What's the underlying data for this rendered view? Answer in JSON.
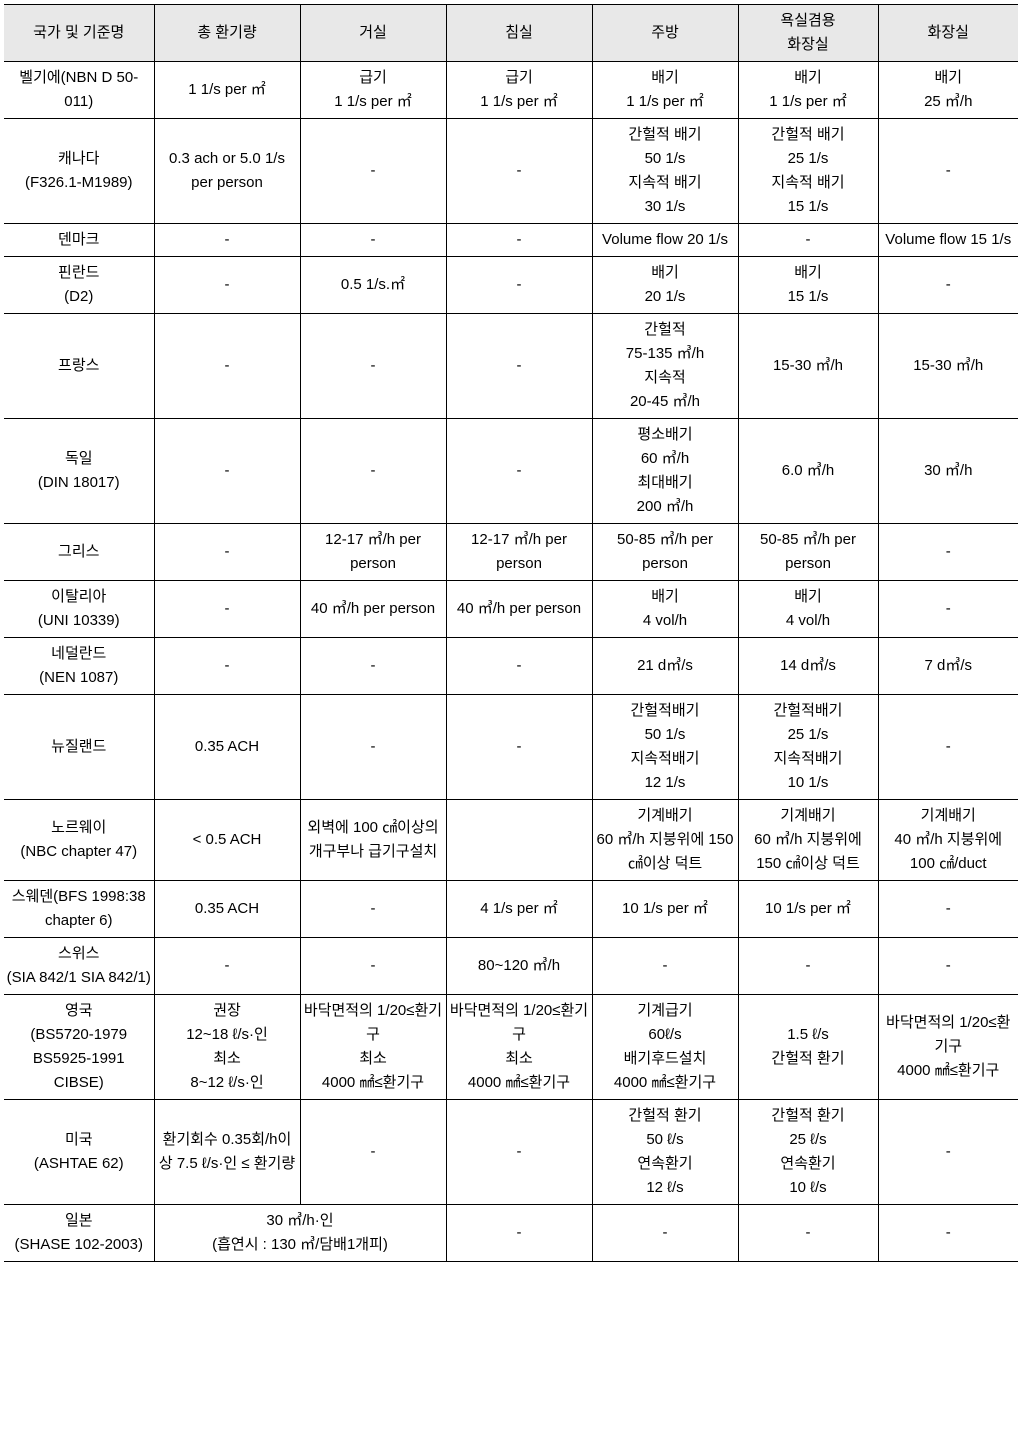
{
  "headers": [
    "국가 및 기준명",
    "총 환기량",
    "거실",
    "침실",
    "주방",
    "욕실겸용\n화장실",
    "화장실"
  ],
  "rows": [
    {
      "c0": "벨기에(NBN D 50-011)",
      "c1": "1 1/s per ㎡",
      "c2": "급기\n1 1/s per ㎡",
      "c3": "급기\n1 1/s per ㎡",
      "c4": "배기\n1 1/s per ㎡",
      "c5": "배기\n1 1/s per ㎡",
      "c6": "배기\n25 ㎥/h"
    },
    {
      "c0": "캐나다\n(F326.1-M1989)",
      "c1": "0.3 ach or 5.0 1/s per person",
      "c2": "-",
      "c3": "-",
      "c4": "간헐적 배기\n50 1/s\n지속적 배기\n30 1/s",
      "c5": "간헐적 배기\n25 1/s\n지속적 배기\n15 1/s",
      "c6": "-"
    },
    {
      "c0": "덴마크",
      "c1": "-",
      "c2": "-",
      "c3": "-",
      "c4": "Volume flow 20 1/s",
      "c5": "-",
      "c6": "Volume flow 15 1/s"
    },
    {
      "c0": "핀란드\n(D2)",
      "c1": "-",
      "c2": "0.5 1/s.㎡",
      "c3": "-",
      "c4": "배기\n20 1/s",
      "c5": "배기\n15 1/s",
      "c6": "-"
    },
    {
      "c0": "프랑스",
      "c1": "-",
      "c2": "-",
      "c3": "-",
      "c4": "간헐적\n75-135 ㎥/h\n지속적\n20-45 ㎥/h",
      "c5": "15-30 ㎥/h",
      "c6": "15-30 ㎥/h"
    },
    {
      "c0": "독일\n(DIN 18017)",
      "c1": "-",
      "c2": "-",
      "c3": "-",
      "c4": "평소배기\n60 ㎥/h\n최대배기\n200 ㎥/h",
      "c5": "6.0 ㎥/h",
      "c6": "30 ㎥/h"
    },
    {
      "c0": "그리스",
      "c1": "-",
      "c2": "12-17 ㎥/h per person",
      "c3": "12-17 ㎥/h per person",
      "c4": "50-85 ㎥/h per person",
      "c5": "50-85 ㎥/h per person",
      "c6": "-"
    },
    {
      "c0": "이탈리아\n(UNI 10339)",
      "c1": "-",
      "c2": "40 ㎥/h per person",
      "c3": "40 ㎥/h per person",
      "c4": "배기\n4 vol/h",
      "c5": "배기\n4 vol/h",
      "c6": "-"
    },
    {
      "c0": "네덜란드\n(NEN 1087)",
      "c1": "-",
      "c2": "-",
      "c3": "-",
      "c4": "21 d㎥/s",
      "c5": "14 d㎥/s",
      "c6": "7 d㎥/s"
    },
    {
      "c0": "뉴질랜드",
      "c1": "0.35 ACH",
      "c2": "-",
      "c3": "-",
      "c4": "간헐적배기\n50 1/s\n지속적배기\n12 1/s",
      "c5": "간헐적배기\n25 1/s\n지속적배기\n10 1/s",
      "c6": "-"
    },
    {
      "c0": "노르웨이\n(NBC chapter 47)",
      "c1": "< 0.5 ACH",
      "c2": "외벽에 100 ㎠이상의 개구부나 급기구설치",
      "c3": "",
      "c4": "기계배기\n60 ㎥/h 지붕위에 150 ㎠이상 덕트",
      "c5": "기계배기\n60 ㎥/h 지붕위에 150 ㎠이상 덕트",
      "c6": "기계배기\n40 ㎥/h 지붕위에 100 ㎠/duct"
    },
    {
      "c0": "스웨덴(BFS 1998:38 chapter 6)",
      "c1": "0.35 ACH",
      "c2": "-",
      "c3": "4 1/s per ㎡",
      "c4": "10 1/s per ㎡",
      "c5": "10 1/s per ㎡",
      "c6": "-"
    },
    {
      "c0": "스위스\n(SIA 842/1 SIA 842/1)",
      "c1": "-",
      "c2": "-",
      "c3": "80~120 ㎥/h",
      "c4": "-",
      "c5": "-",
      "c6": "-"
    },
    {
      "c0": "영국\n(BS5720-1979 BS5925-1991 CIBSE)",
      "c1": "권장\n12~18 ℓ/s·인\n최소\n8~12 ℓ/s·인",
      "c2": "바닥면적의 1/20≤환기구\n최소\n4000 ㎟≤환기구",
      "c3": "바닥면적의 1/20≤환기구\n최소\n4000 ㎟≤환기구",
      "c4": "기계급기\n60ℓ/s\n배기후드설치\n4000 ㎟≤환기구",
      "c5": "1.5 ℓ/s\n간헐적 환기",
      "c6": "바닥면적의 1/20≤환기구\n4000 ㎟≤환기구"
    },
    {
      "c0": "미국\n(ASHTAE 62)",
      "c1": "환기회수 0.35회/h이상 7.5 ℓ/s·인 ≤ 환기량",
      "c2": "-",
      "c3": "-",
      "c4": "간헐적 환기\n50 ℓ/s\n연속환기\n12 ℓ/s",
      "c5": "간헐적 환기\n25 ℓ/s\n연속환기\n10 ℓ/s",
      "c6": "-"
    },
    {
      "c0": "일본\n(SHASE 102-2003)",
      "c1_merged": "30 ㎥/h·인\n(흡연시 : 130 ㎥/담배1개피)",
      "c3": "-",
      "c4": "-",
      "c5": "-",
      "c6": "-"
    }
  ],
  "colors": {
    "header_bg": "#e8e8e8",
    "border": "#000000",
    "text": "#000000"
  }
}
